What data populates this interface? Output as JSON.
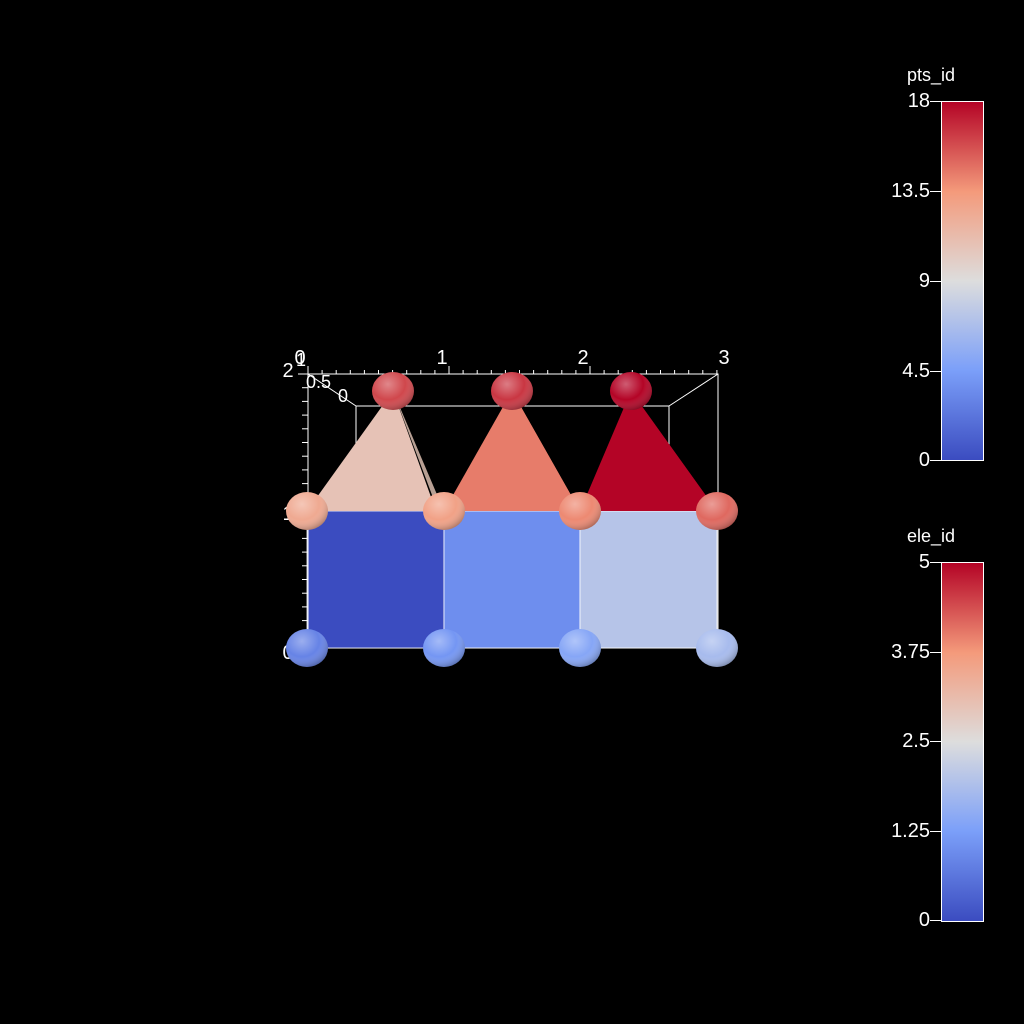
{
  "colors": {
    "background": "#000000",
    "cool_low": "#3b4cc0",
    "mid": "#dddddd",
    "warm_high": "#b40426"
  },
  "axes": {
    "x_ticks": [
      "0",
      "1",
      "2",
      "3"
    ],
    "y_ticks": [
      "2",
      "1",
      "0"
    ],
    "z_ticks": [
      "1",
      "0.5",
      "0"
    ]
  },
  "legends": [
    {
      "title": "pts_id",
      "ticks": [
        "18",
        "13.5",
        "9",
        "4.5",
        "0"
      ]
    },
    {
      "title": "ele_id",
      "ticks": [
        "5",
        "3.75",
        "2.5",
        "1.25",
        "0"
      ]
    }
  ],
  "mesh": {
    "quad_cells": [
      {
        "ele_id": 0
      },
      {
        "ele_id": 1
      },
      {
        "ele_id": 2
      }
    ],
    "triangle_cells": [
      {
        "ele_id": 3
      },
      {
        "ele_id": 4
      },
      {
        "ele_id": 5
      }
    ],
    "points": [
      {
        "row": "bottom",
        "pts_id": 3
      },
      {
        "row": "bottom",
        "pts_id": 4
      },
      {
        "row": "bottom",
        "pts_id": 5
      },
      {
        "row": "bottom",
        "pts_id": 6.5
      },
      {
        "row": "middle",
        "pts_id": 12.5
      },
      {
        "row": "middle",
        "pts_id": 13
      },
      {
        "row": "middle",
        "pts_id": 14
      },
      {
        "row": "middle",
        "pts_id": 15
      },
      {
        "row": "top",
        "pts_id": 16
      },
      {
        "row": "top",
        "pts_id": 16.5
      },
      {
        "row": "top",
        "pts_id": 18
      }
    ]
  }
}
